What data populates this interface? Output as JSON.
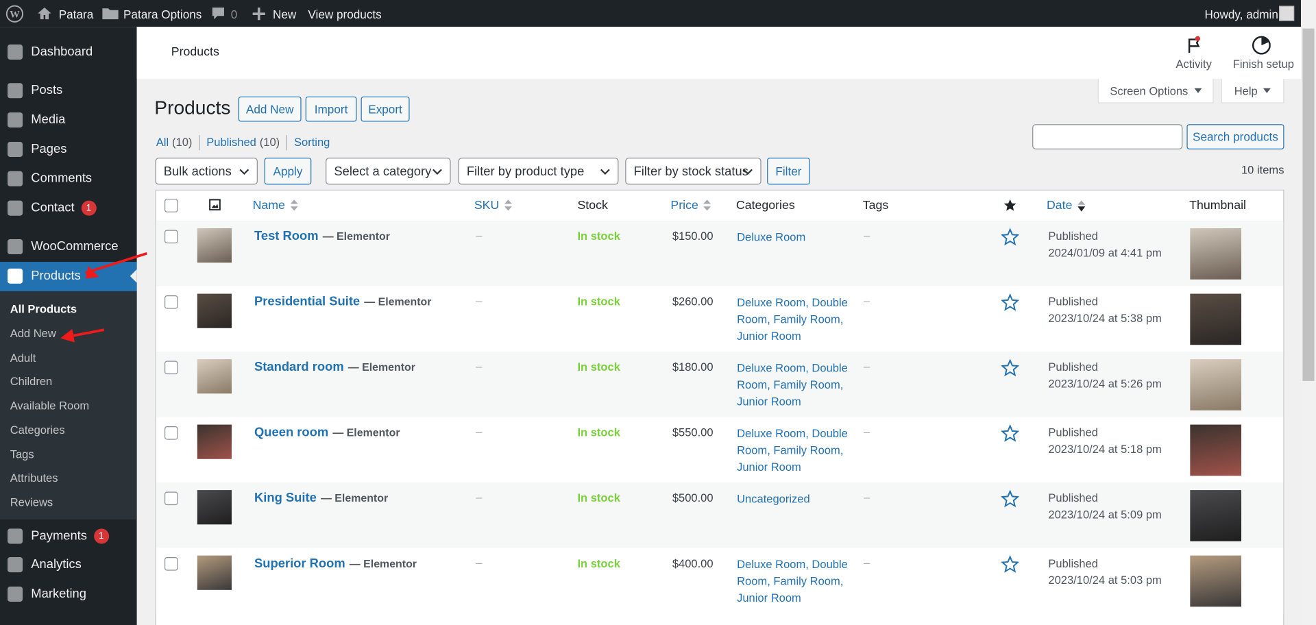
{
  "admin_bar": {
    "site": "Patara",
    "options": "Patara Options",
    "comments": "0",
    "new": "New",
    "view": "View products",
    "greeting": "Howdy, admin"
  },
  "menu": {
    "items": [
      {
        "label": "Dashboard"
      },
      {
        "label": "Posts"
      },
      {
        "label": "Media"
      },
      {
        "label": "Pages"
      },
      {
        "label": "Comments"
      },
      {
        "label": "Contact",
        "badge": "1"
      },
      {
        "label": "WooCommerce"
      },
      {
        "label": "Products"
      },
      {
        "label": "Payments",
        "badge": "1"
      },
      {
        "label": "Analytics"
      },
      {
        "label": "Marketing"
      }
    ],
    "submenu": [
      "All Products",
      "Add New",
      "Adult",
      "Children",
      "Available Room",
      "Categories",
      "Tags",
      "Attributes",
      "Reviews"
    ]
  },
  "header": {
    "title": "Products",
    "activity": "Activity",
    "finish_setup": "Finish setup"
  },
  "screen_meta": {
    "screen_options": "Screen Options",
    "help": "Help"
  },
  "page": {
    "title": "Products",
    "buttons": [
      "Add New",
      "Import",
      "Export"
    ],
    "views": [
      {
        "label": "All",
        "count": "(10)"
      },
      {
        "label": "Published",
        "count": "(10)"
      },
      {
        "label": "Sorting"
      }
    ],
    "search_button": "Search products",
    "bulk_actions": "Bulk actions",
    "apply": "Apply",
    "filters": [
      "Select a category",
      "Filter by product type",
      "Filter by stock status"
    ],
    "filter_button": "Filter",
    "items_count": "10 items"
  },
  "table": {
    "columns": [
      "Name",
      "SKU",
      "Stock",
      "Price",
      "Categories",
      "Tags",
      "Date",
      "Thumbnail"
    ],
    "rows": [
      {
        "name": "Test Room",
        "builder": "— Elementor",
        "sku": "–",
        "stock": "In stock",
        "price": "$150.00",
        "categories": "Deluxe Room",
        "tags": "–",
        "status": "Published",
        "date": "2024/01/09 at 4:41 pm"
      },
      {
        "name": "Presidential Suite",
        "builder": "— Elementor",
        "sku": "–",
        "stock": "In stock",
        "price": "$260.00",
        "categories": "Deluxe Room, Double Room, Family Room, Junior Room",
        "tags": "–",
        "status": "Published",
        "date": "2023/10/24 at 5:38 pm"
      },
      {
        "name": "Standard room",
        "builder": "— Elementor",
        "sku": "–",
        "stock": "In stock",
        "price": "$180.00",
        "categories": "Deluxe Room, Double Room, Family Room, Junior Room",
        "tags": "–",
        "status": "Published",
        "date": "2023/10/24 at 5:26 pm"
      },
      {
        "name": "Queen room",
        "builder": "— Elementor",
        "sku": "–",
        "stock": "In stock",
        "price": "$550.00",
        "categories": "Deluxe Room, Double Room, Family Room, Junior Room",
        "tags": "–",
        "status": "Published",
        "date": "2023/10/24 at 5:18 pm"
      },
      {
        "name": "King Suite",
        "builder": "— Elementor",
        "sku": "–",
        "stock": "In stock",
        "price": "$500.00",
        "categories": "Uncategorized",
        "tags": "–",
        "status": "Published",
        "date": "2023/10/24 at 5:09 pm"
      },
      {
        "name": "Superior Room",
        "builder": "— Elementor",
        "sku": "–",
        "stock": "In stock",
        "price": "$400.00",
        "categories": "Deluxe Room, Double Room, Family Room, Junior Room",
        "tags": "–",
        "status": "Published",
        "date": "2023/10/24 at 5:03 pm"
      }
    ]
  }
}
